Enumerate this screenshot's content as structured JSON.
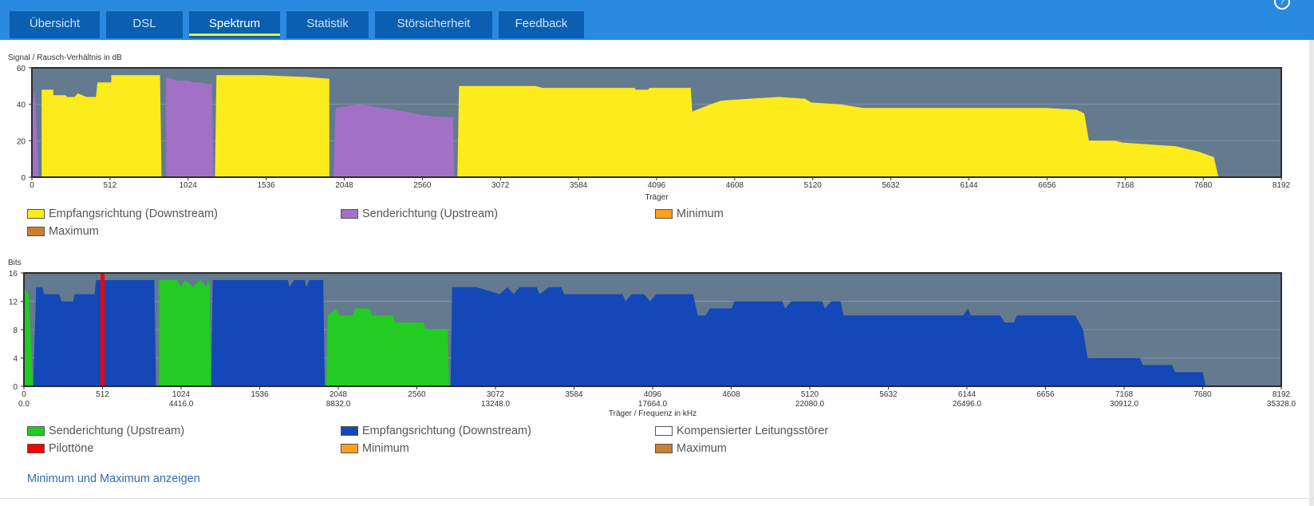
{
  "tabs": [
    {
      "label": "Übersicht",
      "active": false
    },
    {
      "label": "DSL",
      "active": false
    },
    {
      "label": "Spektrum",
      "active": true
    },
    {
      "label": "Statistik",
      "active": false
    },
    {
      "label": "Störsicherheit",
      "active": false
    },
    {
      "label": "Feedback",
      "active": false
    }
  ],
  "help_icon": "?",
  "chart_data": [
    {
      "type": "area",
      "title": "Signal / Rausch-Verhältnis in dB",
      "xlabel": "Träger",
      "ylabel": "Signal / Rausch-Verhältnis in dB",
      "xlim": [
        0,
        8192
      ],
      "ylim": [
        0,
        60
      ],
      "xticks": [
        0,
        512,
        1024,
        1536,
        2048,
        2560,
        3072,
        3584,
        4096,
        4608,
        5120,
        5632,
        6144,
        6656,
        7168,
        7680,
        8192
      ],
      "yticks": [
        0,
        20,
        40,
        60
      ],
      "grid": true,
      "series": [
        {
          "name": "Empfangsrichtung (Downstream)",
          "color": "#fdec1c",
          "segments": [
            [
              [
                64,
                0
              ],
              [
                64,
                48
              ],
              [
                140,
                48
              ],
              [
                140,
                45
              ],
              [
                220,
                45
              ],
              [
                230,
                44
              ],
              [
                280,
                44
              ],
              [
                300,
                46
              ],
              [
                330,
                45
              ],
              [
                360,
                44
              ],
              [
                420,
                44
              ],
              [
                430,
                52
              ],
              [
                520,
                52
              ],
              [
                520,
                56
              ],
              [
                840,
                56
              ],
              [
                850,
                0
              ]
            ],
            [
              [
                1200,
                0
              ],
              [
                1210,
                56
              ],
              [
                1390,
                56
              ],
              [
                1500,
                56
              ],
              [
                1800,
                55
              ],
              [
                1950,
                54
              ],
              [
                1950,
                0
              ]
            ],
            [
              [
                2790,
                0
              ],
              [
                2800,
                50
              ],
              [
                3000,
                50
              ],
              [
                3300,
                50
              ],
              [
                3350,
                49
              ],
              [
                3950,
                49
              ],
              [
                3960,
                48
              ],
              [
                4040,
                48
              ],
              [
                4050,
                49
              ],
              [
                4320,
                49
              ],
              [
                4330,
                36
              ],
              [
                4450,
                40
              ],
              [
                4520,
                42
              ],
              [
                4700,
                43
              ],
              [
                4900,
                44
              ],
              [
                5070,
                43
              ],
              [
                5110,
                41
              ],
              [
                5300,
                40
              ],
              [
                5450,
                38
              ],
              [
                5700,
                38
              ],
              [
                5850,
                38
              ],
              [
                6300,
                38
              ],
              [
                6450,
                38
              ],
              [
                6650,
                38
              ],
              [
                6850,
                37
              ],
              [
                6900,
                35
              ],
              [
                6930,
                20
              ],
              [
                7100,
                20
              ],
              [
                7150,
                19
              ],
              [
                7500,
                17
              ],
              [
                7650,
                14
              ],
              [
                7750,
                11
              ],
              [
                7780,
                0
              ]
            ]
          ]
        },
        {
          "name": "Senderichtung (Upstream)",
          "color": "#a271c6",
          "segments": [
            [
              [
                0,
                0
              ],
              [
                5,
                40
              ],
              [
                20,
                48
              ],
              [
                45,
                0
              ]
            ],
            [
              [
                880,
                0
              ],
              [
                880,
                55
              ],
              [
                950,
                53
              ],
              [
                1020,
                53
              ],
              [
                1050,
                52
              ],
              [
                1100,
                52
              ],
              [
                1150,
                51
              ],
              [
                1180,
                51
              ],
              [
                1190,
                0
              ]
            ],
            [
              [
                1980,
                0
              ],
              [
                1990,
                38
              ],
              [
                2150,
                40
              ],
              [
                2300,
                38
              ],
              [
                2450,
                36
              ],
              [
                2560,
                34
              ],
              [
                2700,
                33
              ],
              [
                2760,
                33
              ],
              [
                2770,
                0
              ]
            ]
          ]
        },
        {
          "name": "Minimum",
          "color": "#ff9f1a",
          "segments": []
        },
        {
          "name": "Maximum",
          "color": "#c9812f",
          "segments": []
        }
      ]
    },
    {
      "type": "area",
      "title": "Bits",
      "xlabel": "Träger / Frequenz in kHz",
      "ylabel": "Bits",
      "xlim": [
        0,
        8192
      ],
      "ylim": [
        0,
        16
      ],
      "xticks": [
        0,
        512,
        1024,
        1536,
        2048,
        2560,
        3072,
        3584,
        4096,
        4608,
        5120,
        5632,
        6144,
        6656,
        7168,
        7680,
        8192
      ],
      "xticks_khz": [
        "0.0",
        "",
        "4416.0",
        "",
        "8832.0",
        "",
        "13248.0",
        "",
        "17664.0",
        "",
        "22080.0",
        "",
        "26496.0",
        "",
        "30912.0",
        "",
        "35328.0"
      ],
      "yticks": [
        0,
        4,
        8,
        12,
        16
      ],
      "grid": true,
      "series": [
        {
          "name": "Senderichtung (Upstream)",
          "color": "#22cc22",
          "segments": [
            [
              [
                0,
                0
              ],
              [
                0,
                14
              ],
              [
                30,
                13
              ],
              [
                60,
                0
              ]
            ],
            [
              [
                880,
                0
              ],
              [
                880,
                15
              ],
              [
                1000,
                15
              ],
              [
                1020,
                14
              ],
              [
                1050,
                15
              ],
              [
                1100,
                14
              ],
              [
                1150,
                15
              ],
              [
                1190,
                14
              ],
              [
                1200,
                15
              ],
              [
                1210,
                14
              ],
              [
                1220,
                0
              ]
            ],
            [
              [
                1970,
                0
              ],
              [
                1980,
                10
              ],
              [
                2030,
                11
              ],
              [
                2060,
                10
              ],
              [
                2140,
                10
              ],
              [
                2160,
                11
              ],
              [
                2250,
                11
              ],
              [
                2270,
                10
              ],
              [
                2400,
                10
              ],
              [
                2420,
                9
              ],
              [
                2600,
                9
              ],
              [
                2620,
                8
              ],
              [
                2760,
                8
              ],
              [
                2770,
                0
              ]
            ]
          ]
        },
        {
          "name": "Empfangsrichtung (Downstream)",
          "color": "#1447b7",
          "segments": [
            [
              [
                60,
                0
              ],
              [
                80,
                14
              ],
              [
                120,
                14
              ],
              [
                130,
                13
              ],
              [
                230,
                13
              ],
              [
                245,
                12
              ],
              [
                320,
                12
              ],
              [
                330,
                13
              ],
              [
                460,
                13
              ],
              [
                470,
                15
              ],
              [
                500,
                15
              ],
              [
                800,
                15
              ],
              [
                850,
                15
              ],
              [
                860,
                0
              ]
            ],
            [
              [
                1220,
                0
              ],
              [
                1230,
                15
              ],
              [
                1400,
                15
              ],
              [
                1720,
                15
              ],
              [
                1730,
                14
              ],
              [
                1760,
                15
              ],
              [
                1830,
                15
              ],
              [
                1840,
                14
              ],
              [
                1860,
                15
              ],
              [
                1950,
                15
              ],
              [
                1960,
                0
              ]
            ],
            [
              [
                2780,
                0
              ],
              [
                2790,
                14
              ],
              [
                2950,
                14
              ],
              [
                3100,
                13
              ],
              [
                3150,
                14
              ],
              [
                3190,
                13
              ],
              [
                3230,
                14
              ],
              [
                3340,
                14
              ],
              [
                3360,
                13
              ],
              [
                3420,
                14
              ],
              [
                3500,
                14
              ],
              [
                3520,
                13
              ],
              [
                3900,
                13
              ],
              [
                3920,
                12
              ],
              [
                3960,
                13
              ],
              [
                4040,
                13
              ],
              [
                4080,
                12
              ],
              [
                4120,
                13
              ],
              [
                4360,
                13
              ],
              [
                4390,
                10
              ],
              [
                4440,
                10
              ],
              [
                4470,
                11
              ],
              [
                4610,
                11
              ],
              [
                4630,
                12
              ],
              [
                4940,
                12
              ],
              [
                4960,
                11
              ],
              [
                5000,
                12
              ],
              [
                5200,
                12
              ],
              [
                5220,
                11
              ],
              [
                5260,
                12
              ],
              [
                5320,
                12
              ],
              [
                5340,
                10
              ],
              [
                6120,
                10
              ],
              [
                6150,
                11
              ],
              [
                6170,
                10
              ],
              [
                6360,
                10
              ],
              [
                6390,
                9
              ],
              [
                6450,
                9
              ],
              [
                6470,
                10
              ],
              [
                6750,
                10
              ],
              [
                6850,
                10
              ],
              [
                6900,
                8
              ],
              [
                6930,
                4
              ],
              [
                7270,
                4
              ],
              [
                7290,
                3
              ],
              [
                7480,
                3
              ],
              [
                7500,
                2
              ],
              [
                7680,
                2
              ],
              [
                7700,
                0
              ]
            ]
          ]
        },
        {
          "name": "Kompensierter Leitungsstörer",
          "color": "#ffffff",
          "segments": []
        },
        {
          "name": "Pilottöne",
          "color": "#ff0000",
          "markers": [
            512
          ]
        },
        {
          "name": "Minimum",
          "color": "#ff9f1a",
          "segments": []
        },
        {
          "name": "Maximum",
          "color": "#c9812f",
          "segments": []
        }
      ]
    }
  ],
  "legends": [
    [
      {
        "label": "Empfangsrichtung (Downstream)",
        "color": "#fdec1c"
      },
      {
        "label": "Senderichtung (Upstream)",
        "color": "#a271c6"
      },
      {
        "label": "Minimum",
        "color": "#ff9f1a"
      },
      {
        "label": "Maximum",
        "color": "#c9812f"
      }
    ],
    [
      {
        "label": "Senderichtung (Upstream)",
        "color": "#22cc22"
      },
      {
        "label": "Empfangsrichtung (Downstream)",
        "color": "#1447b7"
      },
      {
        "label": "Kompensierter Leitungsstörer",
        "color": "#ffffff"
      },
      {
        "label": "Pilottöne",
        "color": "#ff0000"
      },
      {
        "label": "Minimum",
        "color": "#ff9f1a"
      },
      {
        "label": "Maximum",
        "color": "#c9812f"
      }
    ]
  ],
  "toggle_link": "Minimum und Maximum anzeigen",
  "colors": {
    "header": "#2a8ae0",
    "tab": "#0b5fb1",
    "plot_bg": "#647a8f"
  }
}
